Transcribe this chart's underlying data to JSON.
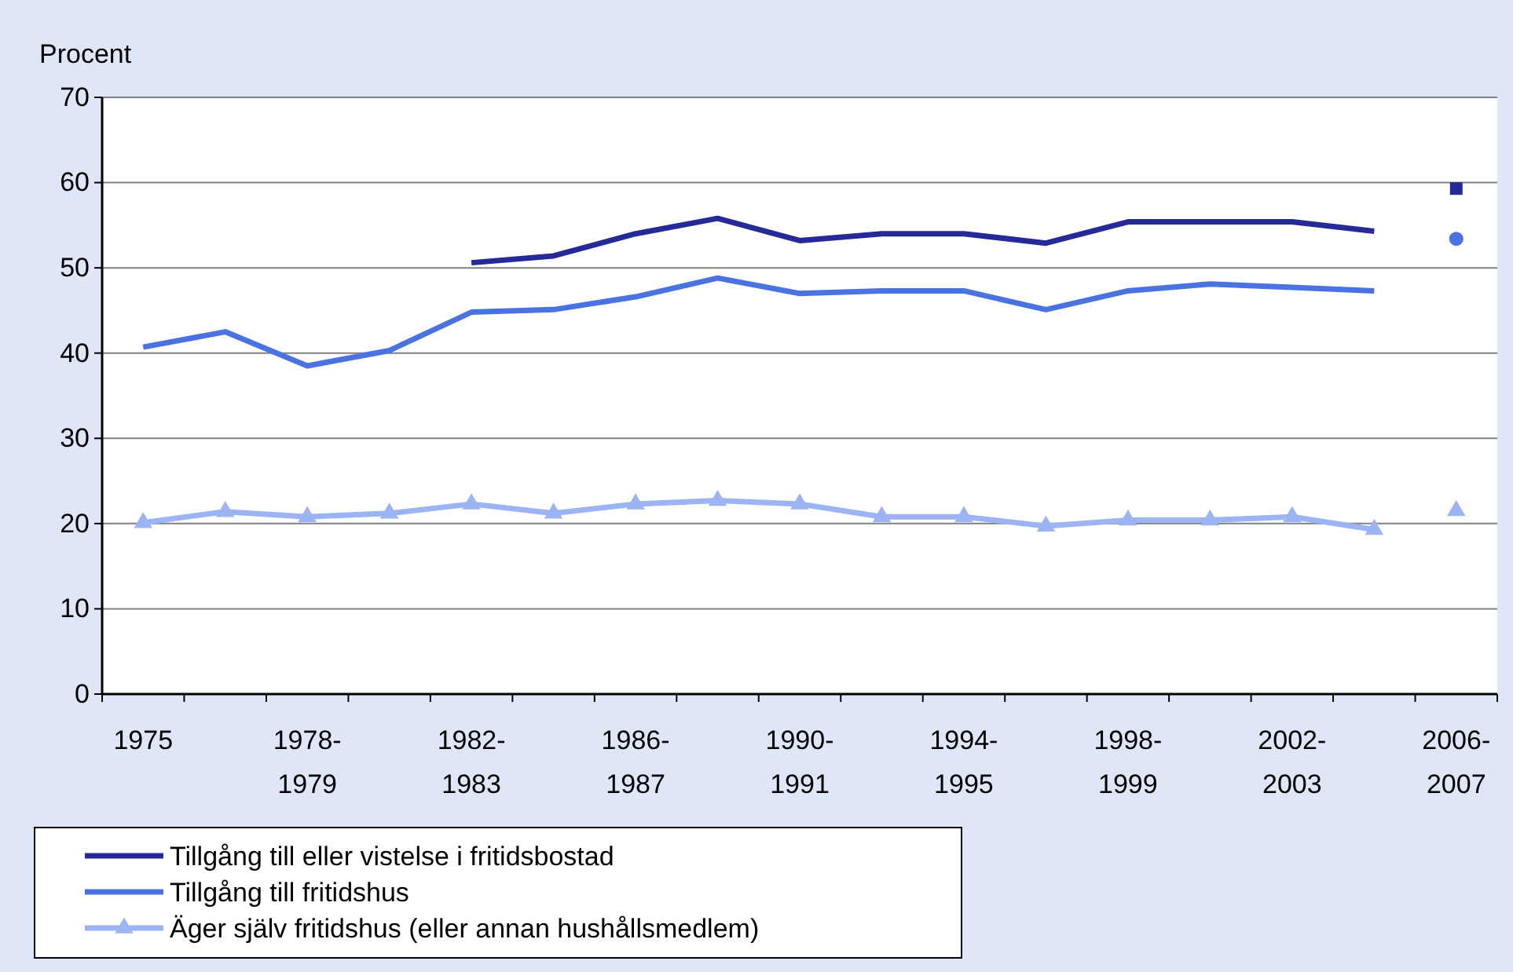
{
  "chart_data": {
    "type": "line",
    "ylabel": "Procent",
    "categories": [
      "1975",
      null,
      "1978-\n1979",
      null,
      "1982-\n1983",
      null,
      "1986-\n1987",
      null,
      "1990-\n1991",
      null,
      "1994-\n1995",
      null,
      "1998-\n1999",
      null,
      "2002-\n2003",
      null,
      "2006-\n2007"
    ],
    "series": [
      {
        "name": "Tillgång till eller vistelse i fritidsbostad",
        "color": "#262a97",
        "marker": "none",
        "values": [
          null,
          null,
          null,
          null,
          50.6,
          51.4,
          54.0,
          55.8,
          53.2,
          54.0,
          54.0,
          52.9,
          55.4,
          55.4,
          55.4,
          54.3,
          null
        ]
      },
      {
        "name": "Tillgång till fritidshus",
        "color": "#4a72e0",
        "marker": "none",
        "values": [
          40.7,
          42.5,
          38.5,
          40.3,
          44.8,
          45.1,
          46.6,
          48.8,
          47.0,
          47.3,
          47.3,
          45.1,
          47.3,
          48.1,
          47.7,
          47.3,
          null
        ]
      },
      {
        "name": "Äger själv fritidshus (eller annan hushållsmedlem)",
        "color": "#9db4f4",
        "marker": "triangle",
        "values": [
          20.1,
          21.4,
          20.8,
          21.2,
          22.3,
          21.2,
          22.3,
          22.7,
          22.3,
          20.8,
          20.8,
          19.7,
          20.4,
          20.4,
          20.8,
          19.3,
          null
        ]
      },
      {
        "type": "scatter",
        "color": "#262a97",
        "marker": "square",
        "values": [
          null,
          null,
          null,
          null,
          null,
          null,
          null,
          null,
          null,
          null,
          null,
          null,
          null,
          null,
          null,
          null,
          59.3
        ]
      },
      {
        "type": "scatter",
        "color": "#4a72e0",
        "marker": "circle",
        "values": [
          null,
          null,
          null,
          null,
          null,
          null,
          null,
          null,
          null,
          null,
          null,
          null,
          null,
          null,
          null,
          null,
          53.4
        ]
      },
      {
        "type": "scatter",
        "color": "#9db4f4",
        "marker": "triangle",
        "values": [
          null,
          null,
          null,
          null,
          null,
          null,
          null,
          null,
          null,
          null,
          null,
          null,
          null,
          null,
          null,
          null,
          21.5
        ]
      }
    ],
    "ylim": [
      0,
      70
    ],
    "yticks": [
      0,
      10,
      20,
      30,
      40,
      50,
      60,
      70
    ],
    "grid": "y",
    "legend": "bottom left"
  }
}
